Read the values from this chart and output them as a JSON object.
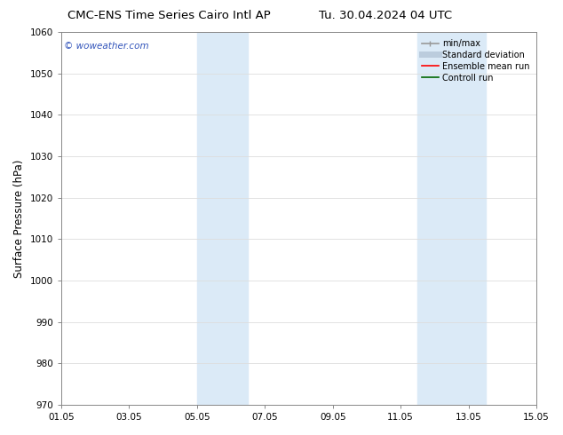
{
  "title_left": "CMC-ENS Time Series Cairo Intl AP",
  "title_right": "Tu. 30.04.2024 04 UTC",
  "ylabel": "Surface Pressure (hPa)",
  "ylim": [
    970,
    1060
  ],
  "yticks": [
    970,
    980,
    990,
    1000,
    1010,
    1020,
    1030,
    1040,
    1050,
    1060
  ],
  "xtick_labels": [
    "01.05",
    "03.05",
    "05.05",
    "07.05",
    "09.05",
    "11.05",
    "13.05",
    "15.05"
  ],
  "xtick_positions_days": [
    0,
    2,
    4,
    6,
    8,
    10,
    12,
    14
  ],
  "total_days": 14,
  "shaded_bands": [
    {
      "x_start_day": 4.0,
      "x_end_day": 5.5
    },
    {
      "x_start_day": 10.5,
      "x_end_day": 12.5
    }
  ],
  "band_color": "#dbeaf7",
  "watermark_text": "© woweather.com",
  "watermark_color": "#3355bb",
  "legend_items": [
    {
      "label": "min/max",
      "color": "#999999",
      "lw": 1.2,
      "ls": "-"
    },
    {
      "label": "Standard deviation",
      "color": "#bbccdd",
      "lw": 5,
      "ls": "-"
    },
    {
      "label": "Ensemble mean run",
      "color": "#ff0000",
      "lw": 1.2,
      "ls": "-"
    },
    {
      "label": "Controll run",
      "color": "#006600",
      "lw": 1.2,
      "ls": "-"
    }
  ],
  "background_color": "#ffffff",
  "grid_color": "#dddddd",
  "spine_color": "#888888",
  "title_fontsize": 9.5,
  "ylabel_fontsize": 8.5,
  "tick_fontsize": 7.5,
  "legend_fontsize": 7.0,
  "watermark_fontsize": 7.5
}
